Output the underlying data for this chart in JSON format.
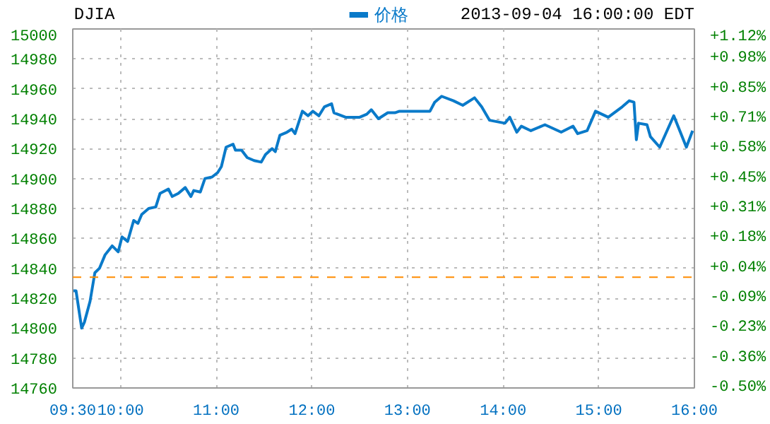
{
  "chart_data": {
    "type": "line",
    "title": "DJIA",
    "subtitle": "2013-09-04 16:00:00 EDT",
    "x": [
      9.5,
      9.534,
      9.593,
      9.622,
      9.681,
      9.731,
      9.779,
      9.838,
      9.912,
      9.975,
      10.015,
      10.074,
      10.137,
      10.181,
      10.221,
      10.294,
      10.368,
      10.412,
      10.5,
      10.54,
      10.603,
      10.676,
      10.735,
      10.765,
      10.834,
      10.882,
      10.956,
      11.015,
      11.054,
      11.103,
      11.176,
      11.201,
      11.265,
      11.324,
      11.397,
      11.471,
      11.515,
      11.584,
      11.618,
      11.666,
      11.74,
      11.79,
      11.824,
      11.901,
      11.96,
      12.01,
      12.074,
      12.132,
      12.206,
      12.231,
      12.353,
      12.5,
      12.574,
      12.622,
      12.696,
      12.794,
      12.868,
      12.916,
      13.063,
      13.235,
      13.284,
      13.357,
      13.481,
      13.578,
      13.701,
      13.775,
      13.857,
      14.019,
      14.069,
      14.143,
      14.191,
      14.29,
      14.437,
      14.607,
      14.731,
      14.779,
      14.878,
      14.966,
      15.099,
      15.246,
      15.319,
      15.368,
      15.393,
      15.416,
      15.504,
      15.54,
      15.637,
      15.784,
      15.916,
      15.981
    ],
    "series": [
      {
        "name": "价格",
        "color": "#0a7ac9",
        "values": [
          14825,
          14825,
          14800,
          14804,
          14818,
          14837,
          14840,
          14849,
          14855,
          14851,
          14861,
          14858,
          14872,
          14870,
          14876,
          14880,
          14881,
          14890,
          14893,
          14888,
          14890,
          14894,
          14888,
          14892,
          14891,
          14900,
          14901,
          14904,
          14908,
          14921,
          14923,
          14919,
          14919,
          14914,
          14912,
          14911,
          14916,
          14920,
          14918,
          14929,
          14931,
          14933,
          14930,
          14945,
          14942,
          14945,
          14942,
          14948,
          14950,
          14944,
          14941,
          14941,
          14943,
          14946,
          14940,
          14944,
          14944,
          14945,
          14945,
          14945,
          14951,
          14955,
          14952,
          14949,
          14954,
          14948,
          14939,
          14937,
          14941,
          14931,
          14935,
          14932,
          14936,
          14931,
          14935,
          14930,
          14932,
          14945,
          14941,
          14948,
          14952,
          14951,
          14926,
          14937,
          14936,
          14928,
          14921,
          14942,
          14921,
          14932
        ]
      }
    ],
    "xlim": [
      9.5,
      16
    ],
    "xticks": [
      {
        "value": 9.5,
        "label": "09:30"
      },
      {
        "value": 10,
        "label": "10:00"
      },
      {
        "value": 11,
        "label": "11:00"
      },
      {
        "value": 12,
        "label": "12:00"
      },
      {
        "value": 13,
        "label": "13:00"
      },
      {
        "value": 14,
        "label": "14:00"
      },
      {
        "value": 15,
        "label": "15:00"
      },
      {
        "value": 16,
        "label": "16:00"
      }
    ],
    "ylim": [
      14760,
      15000
    ],
    "yticks": [
      14760,
      14780,
      14800,
      14820,
      14840,
      14860,
      14880,
      14900,
      14920,
      14940,
      14960,
      14980,
      15000
    ],
    "y2lim": [
      -0.499,
      1.119
    ],
    "y2ticks": [
      {
        "value": -0.499,
        "label": "-0.50%"
      },
      {
        "value": -0.364,
        "label": "-0.36%"
      },
      {
        "value": -0.229,
        "label": "-0.23%"
      },
      {
        "value": -0.094,
        "label": "-0.09%"
      },
      {
        "value": 0.04,
        "label": "+0.04%"
      },
      {
        "value": 0.175,
        "label": "+0.18%"
      },
      {
        "value": 0.31,
        "label": "+0.31%"
      },
      {
        "value": 0.445,
        "label": "+0.45%"
      },
      {
        "value": 0.58,
        "label": "+0.58%"
      },
      {
        "value": 0.715,
        "label": "+0.71%"
      },
      {
        "value": 0.849,
        "label": "+0.85%"
      },
      {
        "value": 0.984,
        "label": "+0.98%"
      },
      {
        "value": 1.119,
        "label": "+1.12%"
      }
    ],
    "ref_lines": [
      {
        "axis": "y",
        "value": 14834,
        "color": "#ff8c00",
        "line_style": "dashed"
      }
    ],
    "grid": true,
    "legend": "top",
    "line_style": "solid",
    "marker": "none"
  }
}
